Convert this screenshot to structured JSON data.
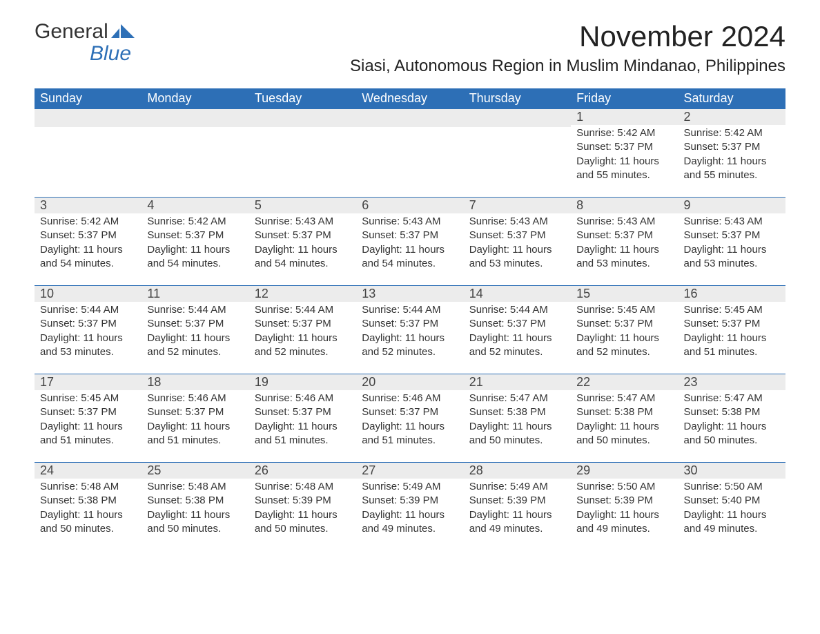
{
  "brand": {
    "name1": "General",
    "name2": "Blue"
  },
  "colors": {
    "header_bg": "#2d6fb6",
    "header_text": "#ffffff",
    "daynum_bg": "#ececec",
    "rule": "#2d6fb6",
    "text": "#333333"
  },
  "title": "November 2024",
  "location": "Siasi, Autonomous Region in Muslim Mindanao, Philippines",
  "day_headers": [
    "Sunday",
    "Monday",
    "Tuesday",
    "Wednesday",
    "Thursday",
    "Friday",
    "Saturday"
  ],
  "weeks": [
    [
      null,
      null,
      null,
      null,
      null,
      {
        "n": "1",
        "sr": "Sunrise: 5:42 AM",
        "ss": "Sunset: 5:37 PM",
        "dl1": "Daylight: 11 hours",
        "dl2": "and 55 minutes."
      },
      {
        "n": "2",
        "sr": "Sunrise: 5:42 AM",
        "ss": "Sunset: 5:37 PM",
        "dl1": "Daylight: 11 hours",
        "dl2": "and 55 minutes."
      }
    ],
    [
      {
        "n": "3",
        "sr": "Sunrise: 5:42 AM",
        "ss": "Sunset: 5:37 PM",
        "dl1": "Daylight: 11 hours",
        "dl2": "and 54 minutes."
      },
      {
        "n": "4",
        "sr": "Sunrise: 5:42 AM",
        "ss": "Sunset: 5:37 PM",
        "dl1": "Daylight: 11 hours",
        "dl2": "and 54 minutes."
      },
      {
        "n": "5",
        "sr": "Sunrise: 5:43 AM",
        "ss": "Sunset: 5:37 PM",
        "dl1": "Daylight: 11 hours",
        "dl2": "and 54 minutes."
      },
      {
        "n": "6",
        "sr": "Sunrise: 5:43 AM",
        "ss": "Sunset: 5:37 PM",
        "dl1": "Daylight: 11 hours",
        "dl2": "and 54 minutes."
      },
      {
        "n": "7",
        "sr": "Sunrise: 5:43 AM",
        "ss": "Sunset: 5:37 PM",
        "dl1": "Daylight: 11 hours",
        "dl2": "and 53 minutes."
      },
      {
        "n": "8",
        "sr": "Sunrise: 5:43 AM",
        "ss": "Sunset: 5:37 PM",
        "dl1": "Daylight: 11 hours",
        "dl2": "and 53 minutes."
      },
      {
        "n": "9",
        "sr": "Sunrise: 5:43 AM",
        "ss": "Sunset: 5:37 PM",
        "dl1": "Daylight: 11 hours",
        "dl2": "and 53 minutes."
      }
    ],
    [
      {
        "n": "10",
        "sr": "Sunrise: 5:44 AM",
        "ss": "Sunset: 5:37 PM",
        "dl1": "Daylight: 11 hours",
        "dl2": "and 53 minutes."
      },
      {
        "n": "11",
        "sr": "Sunrise: 5:44 AM",
        "ss": "Sunset: 5:37 PM",
        "dl1": "Daylight: 11 hours",
        "dl2": "and 52 minutes."
      },
      {
        "n": "12",
        "sr": "Sunrise: 5:44 AM",
        "ss": "Sunset: 5:37 PM",
        "dl1": "Daylight: 11 hours",
        "dl2": "and 52 minutes."
      },
      {
        "n": "13",
        "sr": "Sunrise: 5:44 AM",
        "ss": "Sunset: 5:37 PM",
        "dl1": "Daylight: 11 hours",
        "dl2": "and 52 minutes."
      },
      {
        "n": "14",
        "sr": "Sunrise: 5:44 AM",
        "ss": "Sunset: 5:37 PM",
        "dl1": "Daylight: 11 hours",
        "dl2": "and 52 minutes."
      },
      {
        "n": "15",
        "sr": "Sunrise: 5:45 AM",
        "ss": "Sunset: 5:37 PM",
        "dl1": "Daylight: 11 hours",
        "dl2": "and 52 minutes."
      },
      {
        "n": "16",
        "sr": "Sunrise: 5:45 AM",
        "ss": "Sunset: 5:37 PM",
        "dl1": "Daylight: 11 hours",
        "dl2": "and 51 minutes."
      }
    ],
    [
      {
        "n": "17",
        "sr": "Sunrise: 5:45 AM",
        "ss": "Sunset: 5:37 PM",
        "dl1": "Daylight: 11 hours",
        "dl2": "and 51 minutes."
      },
      {
        "n": "18",
        "sr": "Sunrise: 5:46 AM",
        "ss": "Sunset: 5:37 PM",
        "dl1": "Daylight: 11 hours",
        "dl2": "and 51 minutes."
      },
      {
        "n": "19",
        "sr": "Sunrise: 5:46 AM",
        "ss": "Sunset: 5:37 PM",
        "dl1": "Daylight: 11 hours",
        "dl2": "and 51 minutes."
      },
      {
        "n": "20",
        "sr": "Sunrise: 5:46 AM",
        "ss": "Sunset: 5:37 PM",
        "dl1": "Daylight: 11 hours",
        "dl2": "and 51 minutes."
      },
      {
        "n": "21",
        "sr": "Sunrise: 5:47 AM",
        "ss": "Sunset: 5:38 PM",
        "dl1": "Daylight: 11 hours",
        "dl2": "and 50 minutes."
      },
      {
        "n": "22",
        "sr": "Sunrise: 5:47 AM",
        "ss": "Sunset: 5:38 PM",
        "dl1": "Daylight: 11 hours",
        "dl2": "and 50 minutes."
      },
      {
        "n": "23",
        "sr": "Sunrise: 5:47 AM",
        "ss": "Sunset: 5:38 PM",
        "dl1": "Daylight: 11 hours",
        "dl2": "and 50 minutes."
      }
    ],
    [
      {
        "n": "24",
        "sr": "Sunrise: 5:48 AM",
        "ss": "Sunset: 5:38 PM",
        "dl1": "Daylight: 11 hours",
        "dl2": "and 50 minutes."
      },
      {
        "n": "25",
        "sr": "Sunrise: 5:48 AM",
        "ss": "Sunset: 5:38 PM",
        "dl1": "Daylight: 11 hours",
        "dl2": "and 50 minutes."
      },
      {
        "n": "26",
        "sr": "Sunrise: 5:48 AM",
        "ss": "Sunset: 5:39 PM",
        "dl1": "Daylight: 11 hours",
        "dl2": "and 50 minutes."
      },
      {
        "n": "27",
        "sr": "Sunrise: 5:49 AM",
        "ss": "Sunset: 5:39 PM",
        "dl1": "Daylight: 11 hours",
        "dl2": "and 49 minutes."
      },
      {
        "n": "28",
        "sr": "Sunrise: 5:49 AM",
        "ss": "Sunset: 5:39 PM",
        "dl1": "Daylight: 11 hours",
        "dl2": "and 49 minutes."
      },
      {
        "n": "29",
        "sr": "Sunrise: 5:50 AM",
        "ss": "Sunset: 5:39 PM",
        "dl1": "Daylight: 11 hours",
        "dl2": "and 49 minutes."
      },
      {
        "n": "30",
        "sr": "Sunrise: 5:50 AM",
        "ss": "Sunset: 5:40 PM",
        "dl1": "Daylight: 11 hours",
        "dl2": "and 49 minutes."
      }
    ]
  ]
}
